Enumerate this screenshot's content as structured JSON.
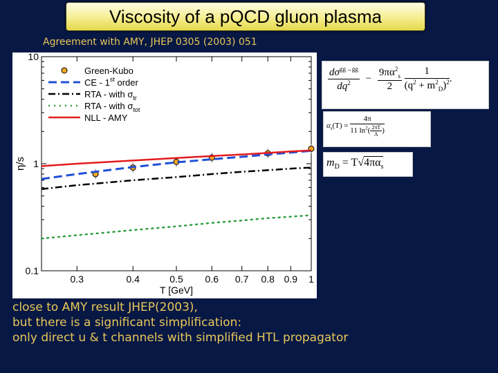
{
  "header": {
    "title": "Viscosity of a pQCD gluon plasma",
    "subtitle": "Agreement with AMY, JHEP 0305 (2003) 051"
  },
  "chart_data": {
    "type": "line",
    "xlabel": "T [GeV]",
    "ylabel": "η/s",
    "xscale": "log",
    "yscale": "log",
    "xlim": [
      0.25,
      1.0
    ],
    "ylim": [
      0.1,
      10
    ],
    "xticks": [
      "0.3",
      "0.4",
      "0.5",
      "0.6",
      "0.7",
      "0.8",
      "0.9",
      "1"
    ],
    "yticks": [
      "0.1",
      "1",
      "10"
    ],
    "legend": {
      "position": "top-left",
      "entries": [
        "Green-Kubo",
        "CE - 1st order",
        "RTA - with σtr",
        "RTA - with σtot",
        "NLL - AMY"
      ],
      "entry_parts": [
        {
          "main": "Green-Kubo",
          "sup": "",
          "sub": ""
        },
        {
          "main": "CE - 1",
          "sup": "st",
          "sub": "",
          "tail": " order"
        },
        {
          "main": "RTA - with σ",
          "sup": "",
          "sub": "tr",
          "tail": ""
        },
        {
          "main": "RTA - with σ",
          "sup": "",
          "sub": "tot",
          "tail": ""
        },
        {
          "main": "NLL - AMY",
          "sup": "",
          "sub": "",
          "tail": ""
        }
      ]
    },
    "series": [
      {
        "name": "Green-Kubo",
        "style": "points",
        "color": "#f5a623",
        "x": [
          0.33,
          0.4,
          0.5,
          0.6,
          0.8,
          1.0
        ],
        "y": [
          0.8,
          0.92,
          1.04,
          1.14,
          1.25,
          1.38
        ]
      },
      {
        "name": "CE - 1st order",
        "style": "dashed",
        "color": "#1f4fd6",
        "x": [
          0.25,
          0.3,
          0.4,
          0.5,
          0.6,
          0.7,
          0.8,
          0.9,
          1.0
        ],
        "y": [
          0.72,
          0.8,
          0.93,
          1.03,
          1.1,
          1.16,
          1.22,
          1.27,
          1.32
        ]
      },
      {
        "name": "RTA - with σtr",
        "style": "dashdot",
        "color": "#000000",
        "x": [
          0.25,
          0.3,
          0.4,
          0.5,
          0.6,
          0.7,
          0.8,
          0.9,
          1.0
        ],
        "y": [
          0.58,
          0.63,
          0.7,
          0.75,
          0.8,
          0.84,
          0.87,
          0.9,
          0.92
        ]
      },
      {
        "name": "RTA - with σtot",
        "style": "dotted",
        "color": "#2e9e3e",
        "x": [
          0.25,
          0.3,
          0.4,
          0.5,
          0.6,
          0.7,
          0.8,
          0.9,
          1.0
        ],
        "y": [
          0.2,
          0.215,
          0.24,
          0.26,
          0.28,
          0.295,
          0.31,
          0.32,
          0.33
        ]
      },
      {
        "name": "NLL - AMY",
        "style": "solid",
        "color": "#e41a1c",
        "x": [
          0.25,
          0.3,
          0.4,
          0.5,
          0.6,
          0.7,
          0.8,
          0.9,
          1.0
        ],
        "y": [
          0.95,
          1.0,
          1.07,
          1.13,
          1.18,
          1.22,
          1.26,
          1.3,
          1.33
        ]
      }
    ]
  },
  "formulas": {
    "f1": {
      "lhs_num": "dσ",
      "lhs_sup": "gg→gg",
      "lhs_den": "dq",
      "lhs_den_sup": "2",
      "minus": "−",
      "num2": "9πα",
      "num2_sub": "s",
      "num2_sup": "2",
      "den2": "2",
      "num3": "1",
      "den3": "(q",
      "den3_sup": "2",
      "den3_mid": " + m",
      "den3_sub": "D",
      "den3_sup2": "2",
      "den3_end": ")",
      "den3_sup3": "2",
      "dot": "."
    },
    "f2": {
      "lhs": "α",
      "lhs_sub": "s",
      "lhs_arg": "(T) =",
      "num": "4π",
      "den": "11 ln",
      "den_sup": "2",
      "den_paren_num": "2πT",
      "den_paren_den": "Λ"
    },
    "f3": {
      "lhs": "m",
      "lhs_sub": "D",
      "eq": " = T",
      "sqrt": "√",
      "rad": "4πα",
      "rad_sub": "s"
    }
  },
  "comment": {
    "line1": "close to AMY result JHEP(2003),",
    "line2": "but there is a significant simplification:",
    "line3": "only direct u & t channels with simplified HTL propagator"
  }
}
